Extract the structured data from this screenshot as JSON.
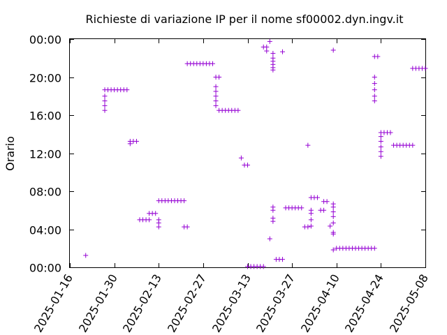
{
  "chart_data": {
    "type": "scatter",
    "title": "Richieste di variazione IP per il nome sf00002.dyn.ingv.it",
    "ylabel": "Orario",
    "xlabel": "",
    "x_type": "date",
    "y_type": "time-of-day",
    "xlim": [
      "2025-01-16",
      "2025-05-08"
    ],
    "ylim": [
      "00:00",
      "24:00"
    ],
    "x_ticks": [
      "2025-01-16",
      "2025-01-30",
      "2025-02-13",
      "2025-02-27",
      "2025-03-13",
      "2025-03-27",
      "2025-04-10",
      "2025-04-24",
      "2025-05-08"
    ],
    "y_ticks": [
      "00:00",
      "04:00",
      "08:00",
      "12:00",
      "16:00",
      "20:00",
      "00:00"
    ],
    "grid": false,
    "legend": "none",
    "marker": "+",
    "color": "#9400d3",
    "series": [
      {
        "points": [
          [
            "2025-01-21",
            "01:15"
          ],
          [
            "2025-01-27",
            "16:30"
          ],
          [
            "2025-01-27",
            "17:00"
          ],
          [
            "2025-01-27",
            "17:30"
          ],
          [
            "2025-01-27",
            "18:00"
          ],
          [
            "2025-01-27",
            "18:40"
          ],
          [
            "2025-01-28",
            "18:40"
          ],
          [
            "2025-01-29",
            "18:40"
          ],
          [
            "2025-01-30",
            "18:40"
          ],
          [
            "2025-01-31",
            "18:40"
          ],
          [
            "2025-02-01",
            "18:40"
          ],
          [
            "2025-02-02",
            "18:40"
          ],
          [
            "2025-02-03",
            "18:40"
          ],
          [
            "2025-02-04",
            "13:00"
          ],
          [
            "2025-02-04",
            "13:15"
          ],
          [
            "2025-02-05",
            "13:15"
          ],
          [
            "2025-02-06",
            "13:15"
          ],
          [
            "2025-02-07",
            "05:00"
          ],
          [
            "2025-02-08",
            "05:00"
          ],
          [
            "2025-02-09",
            "05:00"
          ],
          [
            "2025-02-10",
            "05:00"
          ],
          [
            "2025-02-10",
            "05:40"
          ],
          [
            "2025-02-11",
            "05:40"
          ],
          [
            "2025-02-12",
            "05:40"
          ],
          [
            "2025-02-13",
            "04:15"
          ],
          [
            "2025-02-13",
            "04:40"
          ],
          [
            "2025-02-13",
            "05:00"
          ],
          [
            "2025-02-13",
            "07:00"
          ],
          [
            "2025-02-14",
            "07:00"
          ],
          [
            "2025-02-15",
            "07:00"
          ],
          [
            "2025-02-16",
            "07:00"
          ],
          [
            "2025-02-17",
            "07:00"
          ],
          [
            "2025-02-18",
            "07:00"
          ],
          [
            "2025-02-19",
            "07:00"
          ],
          [
            "2025-02-20",
            "07:00"
          ],
          [
            "2025-02-21",
            "07:00"
          ],
          [
            "2025-02-21",
            "04:15"
          ],
          [
            "2025-02-22",
            "04:15"
          ],
          [
            "2025-02-22",
            "21:25"
          ],
          [
            "2025-02-23",
            "21:25"
          ],
          [
            "2025-02-24",
            "21:25"
          ],
          [
            "2025-02-25",
            "21:25"
          ],
          [
            "2025-02-26",
            "21:25"
          ],
          [
            "2025-02-27",
            "21:25"
          ],
          [
            "2025-02-28",
            "21:25"
          ],
          [
            "2025-03-01",
            "21:25"
          ],
          [
            "2025-03-02",
            "21:25"
          ],
          [
            "2025-03-03",
            "17:00"
          ],
          [
            "2025-03-03",
            "17:30"
          ],
          [
            "2025-03-03",
            "18:00"
          ],
          [
            "2025-03-03",
            "18:30"
          ],
          [
            "2025-03-03",
            "19:00"
          ],
          [
            "2025-03-03",
            "20:00"
          ],
          [
            "2025-03-04",
            "20:00"
          ],
          [
            "2025-03-04",
            "16:30"
          ],
          [
            "2025-03-05",
            "16:30"
          ],
          [
            "2025-03-06",
            "16:30"
          ],
          [
            "2025-03-07",
            "16:30"
          ],
          [
            "2025-03-08",
            "16:30"
          ],
          [
            "2025-03-09",
            "16:30"
          ],
          [
            "2025-03-10",
            "16:30"
          ],
          [
            "2025-03-11",
            "11:30"
          ],
          [
            "2025-03-12",
            "10:45"
          ],
          [
            "2025-03-13",
            "10:45"
          ],
          [
            "2025-03-13",
            "00:05"
          ],
          [
            "2025-03-14",
            "00:05"
          ],
          [
            "2025-03-15",
            "00:05"
          ],
          [
            "2025-03-16",
            "00:05"
          ],
          [
            "2025-03-17",
            "00:05"
          ],
          [
            "2025-03-18",
            "00:05"
          ],
          [
            "2025-03-18",
            "23:10"
          ],
          [
            "2025-03-19",
            "23:10"
          ],
          [
            "2025-03-19",
            "22:45"
          ],
          [
            "2025-03-20",
            "23:45"
          ],
          [
            "2025-03-20",
            "03:00"
          ],
          [
            "2025-03-21",
            "20:45"
          ],
          [
            "2025-03-21",
            "21:00"
          ],
          [
            "2025-03-21",
            "21:20"
          ],
          [
            "2025-03-21",
            "21:40"
          ],
          [
            "2025-03-21",
            "22:00"
          ],
          [
            "2025-03-21",
            "22:30"
          ],
          [
            "2025-03-21",
            "06:00"
          ],
          [
            "2025-03-21",
            "06:20"
          ],
          [
            "2025-03-21",
            "04:50"
          ],
          [
            "2025-03-21",
            "05:10"
          ],
          [
            "2025-03-22",
            "00:50"
          ],
          [
            "2025-03-23",
            "00:50"
          ],
          [
            "2025-03-24",
            "00:50"
          ],
          [
            "2025-03-24",
            "22:40"
          ],
          [
            "2025-03-25",
            "06:15"
          ],
          [
            "2025-03-26",
            "06:15"
          ],
          [
            "2025-03-27",
            "06:15"
          ],
          [
            "2025-03-28",
            "06:15"
          ],
          [
            "2025-03-29",
            "06:15"
          ],
          [
            "2025-03-30",
            "06:15"
          ],
          [
            "2025-03-31",
            "04:15"
          ],
          [
            "2025-04-01",
            "04:15"
          ],
          [
            "2025-04-01",
            "12:50"
          ],
          [
            "2025-04-02",
            "04:20"
          ],
          [
            "2025-04-02",
            "05:00"
          ],
          [
            "2025-04-02",
            "05:40"
          ],
          [
            "2025-04-02",
            "06:00"
          ],
          [
            "2025-04-02",
            "07:20"
          ],
          [
            "2025-04-03",
            "07:20"
          ],
          [
            "2025-04-04",
            "07:20"
          ],
          [
            "2025-04-05",
            "06:00"
          ],
          [
            "2025-04-06",
            "06:00"
          ],
          [
            "2025-04-06",
            "06:55"
          ],
          [
            "2025-04-07",
            "06:55"
          ],
          [
            "2025-04-08",
            "04:20"
          ],
          [
            "2025-04-09",
            "22:50"
          ],
          [
            "2025-04-09",
            "03:30"
          ],
          [
            "2025-04-09",
            "03:40"
          ],
          [
            "2025-04-09",
            "04:40"
          ],
          [
            "2025-04-09",
            "05:20"
          ],
          [
            "2025-04-09",
            "05:50"
          ],
          [
            "2025-04-09",
            "06:20"
          ],
          [
            "2025-04-09",
            "06:40"
          ],
          [
            "2025-04-09",
            "01:50"
          ],
          [
            "2025-04-10",
            "02:00"
          ],
          [
            "2025-04-11",
            "02:00"
          ],
          [
            "2025-04-12",
            "02:00"
          ],
          [
            "2025-04-13",
            "02:00"
          ],
          [
            "2025-04-14",
            "02:00"
          ],
          [
            "2025-04-15",
            "02:00"
          ],
          [
            "2025-04-16",
            "02:00"
          ],
          [
            "2025-04-17",
            "02:00"
          ],
          [
            "2025-04-18",
            "02:00"
          ],
          [
            "2025-04-19",
            "02:00"
          ],
          [
            "2025-04-20",
            "02:00"
          ],
          [
            "2025-04-21",
            "02:00"
          ],
          [
            "2025-04-22",
            "02:00"
          ],
          [
            "2025-04-22",
            "17:30"
          ],
          [
            "2025-04-22",
            "18:00"
          ],
          [
            "2025-04-22",
            "18:40"
          ],
          [
            "2025-04-22",
            "19:20"
          ],
          [
            "2025-04-22",
            "20:00"
          ],
          [
            "2025-04-22",
            "22:10"
          ],
          [
            "2025-04-23",
            "22:10"
          ],
          [
            "2025-04-24",
            "11:40"
          ],
          [
            "2025-04-24",
            "12:10"
          ],
          [
            "2025-04-24",
            "12:40"
          ],
          [
            "2025-04-24",
            "13:15"
          ],
          [
            "2025-04-24",
            "13:45"
          ],
          [
            "2025-04-24",
            "14:10"
          ],
          [
            "2025-04-25",
            "14:10"
          ],
          [
            "2025-04-26",
            "14:10"
          ],
          [
            "2025-04-27",
            "14:10"
          ],
          [
            "2025-04-28",
            "12:50"
          ],
          [
            "2025-04-29",
            "12:50"
          ],
          [
            "2025-04-30",
            "12:50"
          ],
          [
            "2025-05-01",
            "12:50"
          ],
          [
            "2025-05-02",
            "12:50"
          ],
          [
            "2025-05-03",
            "12:50"
          ],
          [
            "2025-05-04",
            "12:50"
          ],
          [
            "2025-05-04",
            "20:55"
          ],
          [
            "2025-05-05",
            "20:55"
          ],
          [
            "2025-05-06",
            "20:55"
          ],
          [
            "2025-05-07",
            "20:55"
          ],
          [
            "2025-05-08",
            "20:55"
          ]
        ]
      }
    ]
  }
}
